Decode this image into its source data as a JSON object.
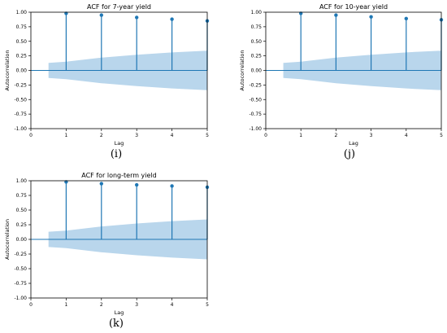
{
  "colors": {
    "stem": "#1f77b4",
    "band": "#b9d6ec",
    "axis": "#000000"
  },
  "chart_data": [
    {
      "type": "stem",
      "title": "ACF for 7-year yield",
      "xlabel": "Lag",
      "ylabel": "Autocorrelation",
      "panel": "(i)",
      "xlim": [
        0,
        5
      ],
      "ylim": [
        -1.0,
        1.0
      ],
      "xticks": [
        "0",
        "1",
        "2",
        "3",
        "4",
        "5"
      ],
      "yticks": [
        "1.00",
        "0.75",
        "0.50",
        "0.25",
        "0.00",
        "-0.25",
        "-0.50",
        "-0.75",
        "-1.00"
      ],
      "lags": [
        1,
        2,
        3,
        4,
        5
      ],
      "values": [
        0.98,
        0.95,
        0.91,
        0.88,
        0.85
      ],
      "confidence_band": {
        "x": [
          0.5,
          1,
          2,
          3,
          4,
          5
        ],
        "upper": [
          0.13,
          0.15,
          0.22,
          0.27,
          0.31,
          0.34
        ]
      }
    },
    {
      "type": "stem",
      "title": "ACF for 10-year yield",
      "xlabel": "Lag",
      "ylabel": "Autocorrelation",
      "panel": "(j)",
      "xlim": [
        0,
        5
      ],
      "ylim": [
        -1.0,
        1.0
      ],
      "xticks": [
        "0",
        "1",
        "2",
        "3",
        "4",
        "5"
      ],
      "yticks": [
        "1.00",
        "0.75",
        "0.50",
        "0.25",
        "0.00",
        "-0.25",
        "-0.50",
        "-0.75",
        "-1.00"
      ],
      "lags": [
        1,
        2,
        3,
        4,
        5
      ],
      "values": [
        0.98,
        0.95,
        0.92,
        0.89,
        0.87
      ],
      "confidence_band": {
        "x": [
          0.5,
          1,
          2,
          3,
          4,
          5
        ],
        "upper": [
          0.13,
          0.15,
          0.22,
          0.27,
          0.31,
          0.34
        ]
      }
    },
    {
      "type": "stem",
      "title": "ACF for long-term yield",
      "xlabel": "Lag",
      "ylabel": "Autocorrelation",
      "panel": "(k)",
      "xlim": [
        0,
        5
      ],
      "ylim": [
        -1.0,
        1.0
      ],
      "xticks": [
        "0",
        "1",
        "2",
        "3",
        "4",
        "5"
      ],
      "yticks": [
        "1.00",
        "0.75",
        "0.50",
        "0.25",
        "0.00",
        "-0.25",
        "-0.50",
        "-0.75",
        "-1.00"
      ],
      "lags": [
        1,
        2,
        3,
        4,
        5
      ],
      "values": [
        0.98,
        0.95,
        0.93,
        0.91,
        0.89
      ],
      "confidence_band": {
        "x": [
          0.5,
          1,
          2,
          3,
          4,
          5
        ],
        "upper": [
          0.13,
          0.15,
          0.22,
          0.27,
          0.31,
          0.34
        ]
      }
    }
  ]
}
